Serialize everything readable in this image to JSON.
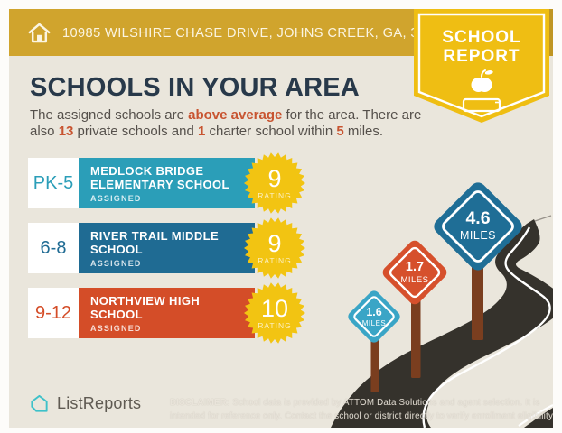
{
  "header": {
    "address": "10985 WILSHIRE CHASE DRIVE, JOHNS CREEK, GA, 30097",
    "badge_line1": "SCHOOL",
    "badge_line2": "REPORT"
  },
  "intro": {
    "title": "SCHOOLS IN YOUR AREA",
    "line1_pre": "The assigned schools are ",
    "line1_bold": "above average",
    "line1_post": " for the area. There are",
    "line2_pre": "also ",
    "line2_bold1": "13",
    "line2_mid1": " private schools and ",
    "line2_bold2": "1",
    "line2_mid2": " charter school within ",
    "line2_bold3": "5",
    "line2_post": " miles."
  },
  "schools": [
    {
      "grades": "PK-5",
      "name_line1": "MEDLOCK BRIDGE",
      "name_line2": "ELEMENTARY SCHOOL",
      "status": "ASSIGNED",
      "rating": "9",
      "rating_label": "RATING",
      "color": "#2B9EB8"
    },
    {
      "grades": "6-8",
      "name_line1": "RIVER TRAIL MIDDLE",
      "name_line2": "SCHOOL",
      "status": "ASSIGNED",
      "rating": "9",
      "rating_label": "RATING",
      "color": "#1F6B93"
    },
    {
      "grades": "9-12",
      "name_line1": "NORTHVIEW HIGH",
      "name_line2": "SCHOOL",
      "status": "ASSIGNED",
      "rating": "10",
      "rating_label": "RATING",
      "color": "#D44D28"
    }
  ],
  "map": {
    "signs": [
      {
        "distance": "1.6",
        "unit": "MILES",
        "color": "#3AA5C6"
      },
      {
        "distance": "1.7",
        "unit": "MILES",
        "color": "#D6502C"
      },
      {
        "distance": "4.6",
        "unit": "MILES",
        "color": "#1F6E96"
      }
    ]
  },
  "footer": {
    "brand": "ListReports",
    "disclaimer_label": "DISCLAIMER:",
    "disclaimer_text": " School data is provided by ATTOM Data Solutions and agent selection. It is intended for reference only. Contact the school or district directly to verify enrollment eligibility."
  },
  "colors": {
    "header_gold": "#D0A42D",
    "ribbon_gold": "#EFBE13",
    "background_cream": "#EAE6DC",
    "title_navy": "#28394A",
    "accent_orange": "#C85430",
    "teal": "#2B9EB8",
    "dark_blue": "#1F6B93",
    "orange_red": "#D44D28",
    "starburst_yellow": "#F2C412",
    "road_dark": "#35322C",
    "post_brown": "#7A3E1F",
    "brand_teal": "#3EC1C9"
  }
}
